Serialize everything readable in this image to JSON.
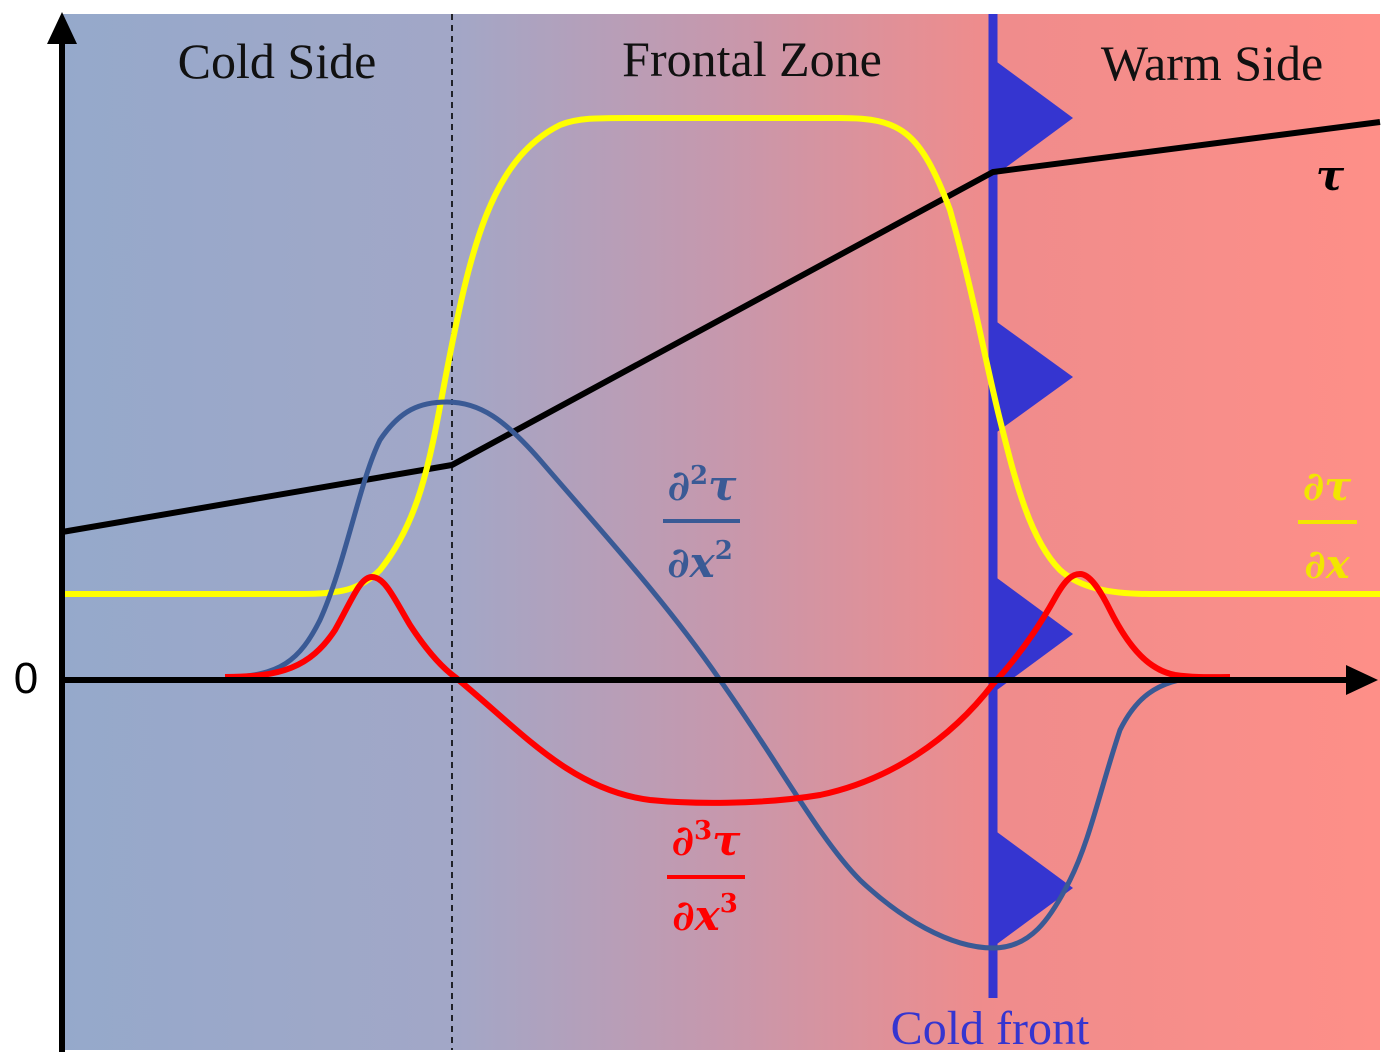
{
  "regions": {
    "cold_side": "Cold Side",
    "frontal_zone": "Frontal Zone",
    "warm_side": "Warm Side"
  },
  "front": {
    "label": "Cold front",
    "color": "#3535d0"
  },
  "axis": {
    "zero_label": "0"
  },
  "curves": {
    "tau": {
      "symbol": "τ",
      "color": "#000000"
    },
    "d1": {
      "numerator": "∂τ",
      "denominator": "∂x",
      "color": "#ffff00",
      "label_color": "#f2e600"
    },
    "d2": {
      "num_base": "∂",
      "num_exp": "2",
      "num_sym": "τ",
      "den_base": "∂x",
      "den_exp": "2",
      "color": "#3a5a95"
    },
    "d3": {
      "num_base": "∂",
      "num_exp": "3",
      "num_sym": "τ",
      "den_base": "∂x",
      "den_exp": "3",
      "color": "#ff0000"
    }
  },
  "background": {
    "cold_color": "#95a9cb",
    "warm_color": "#fe8f88"
  }
}
